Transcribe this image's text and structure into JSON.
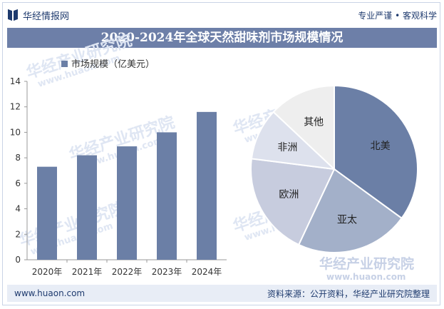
{
  "header": {
    "brand": "华经情报网",
    "slogan": "专业严谨 • 客观科学"
  },
  "title": "2020-2024年全球天然甜味剂市场规模情况",
  "footer": {
    "website": "www.huaon.com",
    "source": "资料来源：公开资料，华经产业研究院整理"
  },
  "watermark": {
    "cn": "华经产业研究院",
    "en": "www.huaon.com"
  },
  "colors": {
    "bar": "#6b7fa6",
    "title_bg": "#6d7fa8",
    "text_dark": "#1e3a6e"
  },
  "chart_data": [
    {
      "type": "bar",
      "categories": [
        "2020年",
        "2021年",
        "2022年",
        "2023年",
        "2024年"
      ],
      "series": [
        {
          "name": "市场规模（亿美元）",
          "values": [
            7.3,
            8.2,
            8.9,
            10.0,
            11.6
          ]
        }
      ],
      "ylim": [
        0,
        14
      ],
      "yticks": [
        0,
        2,
        4,
        6,
        8,
        10,
        12,
        14
      ],
      "legend": "top-left",
      "grid": false
    },
    {
      "type": "pie",
      "labels": [
        "北美",
        "亚太",
        "欧洲",
        "非洲",
        "其他"
      ],
      "values": [
        35,
        22,
        20,
        10,
        13
      ],
      "colors": [
        "#6b7fa6",
        "#a3b0c9",
        "#c7ccde",
        "#dde1ed",
        "#eeeeee"
      ]
    }
  ]
}
